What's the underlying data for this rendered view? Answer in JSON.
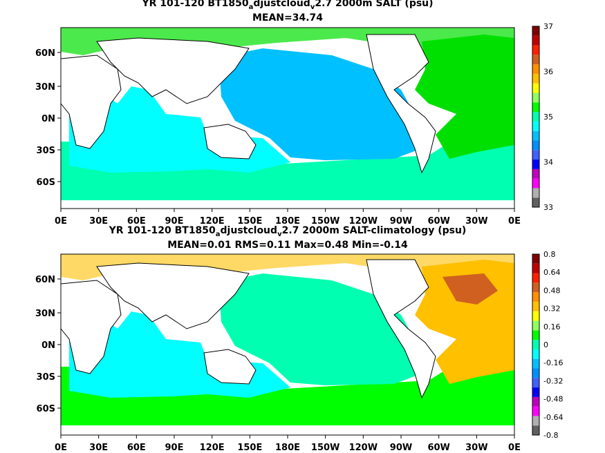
{
  "panels": [
    {
      "title_prefix": "YR 101-120 BT1850",
      "title_sub1": "a",
      "title_mid": "djustcloud",
      "title_sub2": "v",
      "title_suffix": "2.7 2000m SALT (psu)",
      "stats": "MEAN=34.74",
      "colorbar_labels": [
        "37",
        "36",
        "35",
        "34",
        "33"
      ],
      "colorbar_colors": [
        "#606060",
        "#b0b0b0",
        "#ff00ff",
        "#c000c0",
        "#0000ff",
        "#4060ff",
        "#0090ff",
        "#00c0ff",
        "#00ffff",
        "#00ffb0",
        "#00ff00",
        "#90ff60",
        "#ffff00",
        "#ffc000",
        "#ff9000",
        "#d06020",
        "#ff2000",
        "#c00000",
        "#800000"
      ],
      "ocean_colors": {
        "atlantic": "#00e000",
        "pacific": "#00c0ff",
        "indian": "#00ffff",
        "southern": "#00ffb0"
      }
    },
    {
      "title_prefix": "YR 101-120 BT1850",
      "title_sub1": "a",
      "title_mid": "djustcloud",
      "title_sub2": "v",
      "title_suffix": "2.7 2000m SALT-climatology (psu)",
      "stats": "MEAN=0.01   RMS=0.11   Max=0.48   Min=-0.14",
      "colorbar_labels": [
        "0.8",
        "0.64",
        "0.48",
        "0.32",
        "0.16",
        "0",
        "-0.16",
        "-0.32",
        "-0.48",
        "-0.64",
        "-0.8"
      ],
      "colorbar_colors": [
        "#606060",
        "#b0b0b0",
        "#ff00ff",
        "#c000c0",
        "#0000ff",
        "#4060ff",
        "#0090ff",
        "#00c0ff",
        "#00ffff",
        "#00ffb0",
        "#00ff00",
        "#90ff60",
        "#ffff00",
        "#ffc000",
        "#ff9000",
        "#d06020",
        "#ff2000",
        "#c00000",
        "#800000"
      ],
      "ocean_colors": {
        "atlantic": "#ffc000",
        "pacific": "#00ffb0",
        "indian": "#00ffff",
        "southern": "#00ff00"
      }
    }
  ],
  "axes": {
    "x_ticks": [
      "0E",
      "30E",
      "60E",
      "90E",
      "120E",
      "150E",
      "180E",
      "150W",
      "120W",
      "90W",
      "60W",
      "30W",
      "0E"
    ],
    "y_ticks": [
      "60N",
      "30N",
      "0N",
      "30S",
      "60S"
    ]
  }
}
